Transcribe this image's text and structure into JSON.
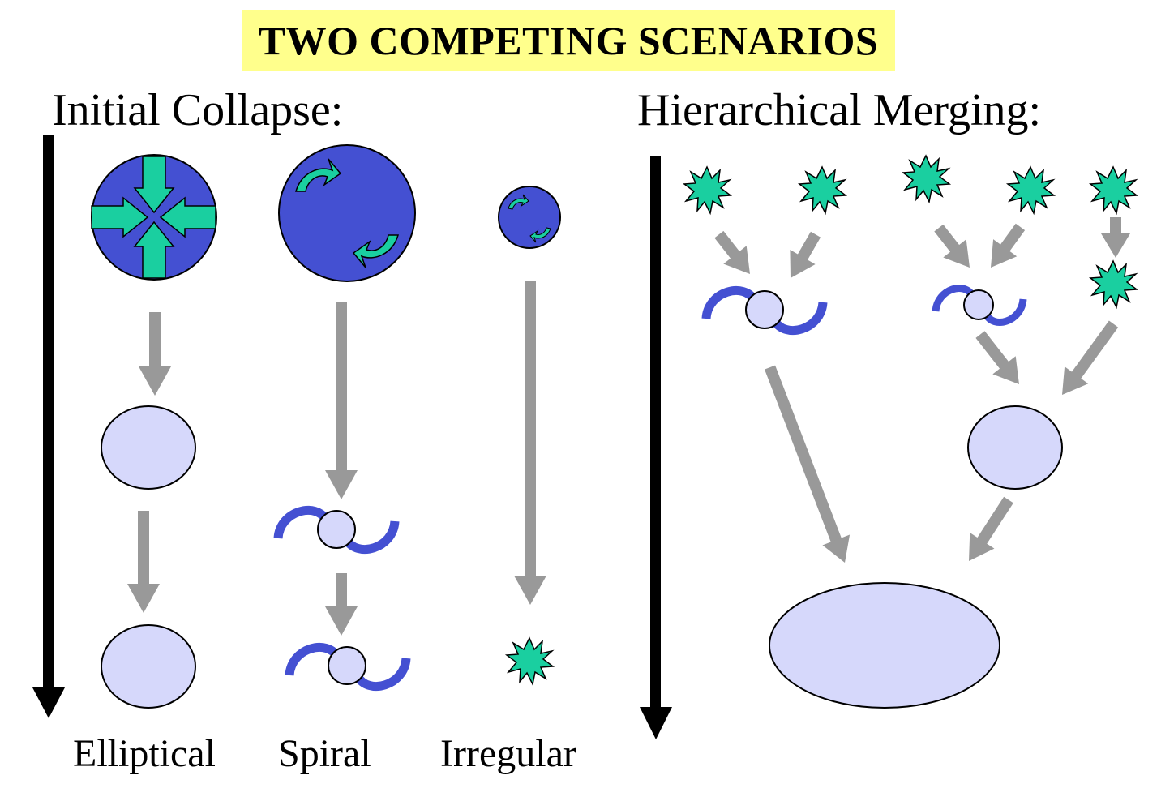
{
  "title": "TWO COMPETING SCENARIOS",
  "left_panel": {
    "heading": "Initial Collapse:",
    "columns": [
      {
        "label": "Elliptical"
      },
      {
        "label": "Spiral"
      },
      {
        "label": "Irregular"
      }
    ]
  },
  "right_panel": {
    "heading": "Hierarchical Merging:"
  },
  "colors": {
    "title_highlight": "#ffff8c",
    "dark_blue": "#4450d2",
    "light_lavender": "#d6d8fb",
    "green": "#1acfa0",
    "gray_arrow": "#999999",
    "time_arrow": "#000000"
  },
  "icons": [
    "collapse-arrows-icon",
    "rotation-arrows-icon",
    "starburst-icon",
    "spiral-galaxy-icon",
    "elliptical-galaxy-icon"
  ]
}
